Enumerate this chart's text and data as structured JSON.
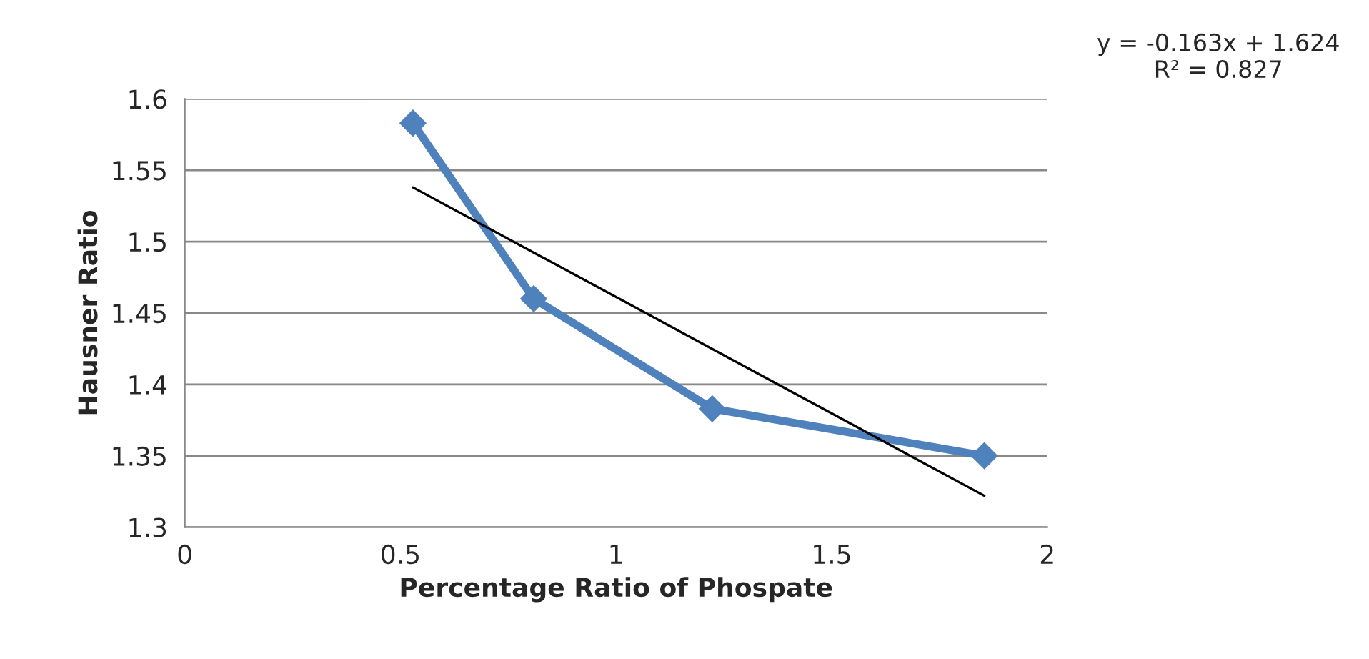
{
  "chart_data": {
    "type": "line",
    "xlabel": "Percentage Ratio of Phospate",
    "ylabel": "Hausner Ratio",
    "series": [
      {
        "color": "#4f81bd",
        "marker": "diamond",
        "x": [
          0.529,
          0.809,
          1.223,
          1.854
        ],
        "values": [
          1.583,
          1.46,
          1.383,
          1.35
        ]
      },
      {
        "color": "#000000",
        "marker": "none",
        "x": [
          0.529,
          1.854
        ],
        "values": [
          1.538,
          1.322
        ]
      }
    ],
    "xlim": [
      0,
      2
    ],
    "xticks": [
      0,
      0.5,
      1,
      1.5,
      2
    ],
    "ylim": [
      1.3,
      1.6
    ],
    "yticks": [
      1.3,
      1.35,
      1.4,
      1.45,
      1.5,
      1.55,
      1.6
    ],
    "grid": "y",
    "legend": false,
    "annotations": [
      "y = -0.163x + 1.624\nR² = 0.827"
    ]
  }
}
